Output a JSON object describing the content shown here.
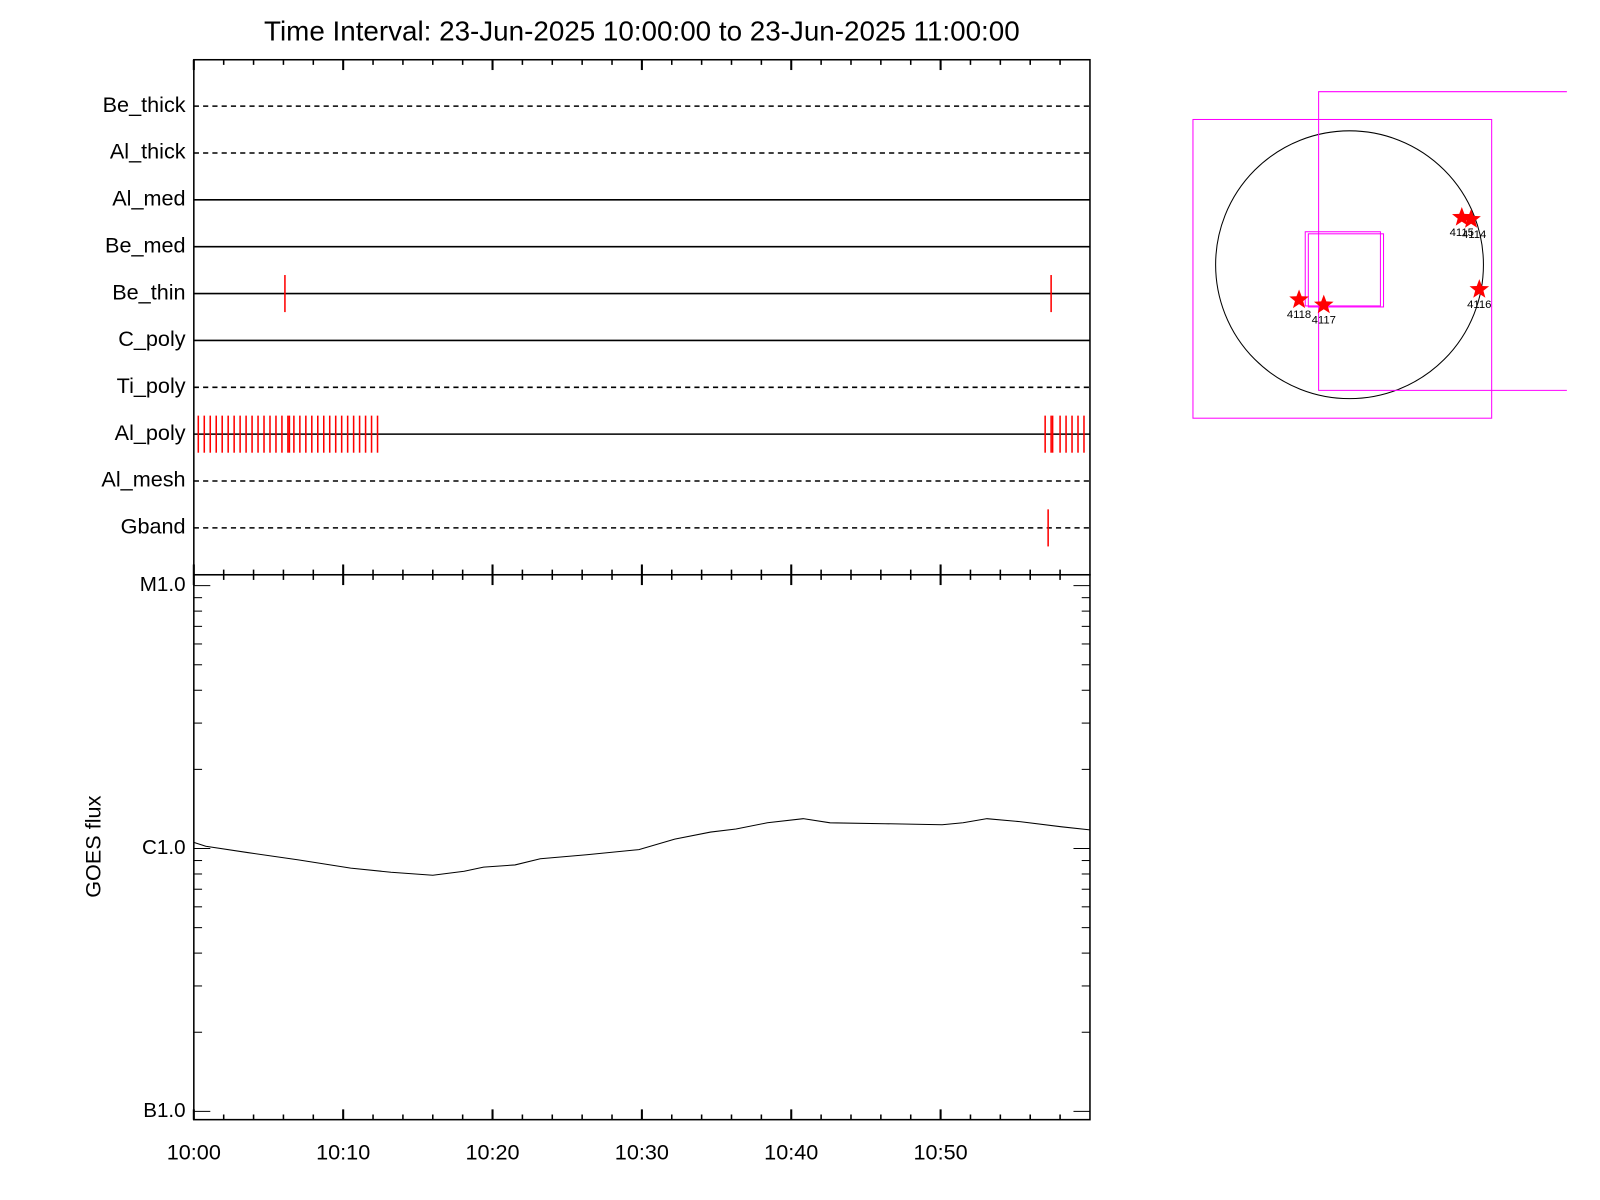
{
  "chart_data": [
    {
      "type": "timeline",
      "title": "Time Interval: 23-Jun-2025 10:00:00 to 23-Jun-2025 11:00:00",
      "categories": [
        "Be_thick",
        "Al_thick",
        "Al_med",
        "Be_med",
        "Be_thin",
        "C_poly",
        "Ti_poly",
        "Al_poly",
        "Al_mesh",
        "Gband"
      ],
      "line_styles": [
        "dashed",
        "dashed",
        "solid",
        "solid",
        "solid",
        "solid",
        "dashed",
        "solid",
        "dashed",
        "dashed"
      ],
      "event_color": "#ff0000",
      "events": [
        [],
        [],
        [],
        [],
        [
          6.1,
          57.4
        ],
        [],
        [],
        [
          0.3,
          0.7,
          1.1,
          1.5,
          1.9,
          2.3,
          2.7,
          3.1,
          3.5,
          3.9,
          4.3,
          4.7,
          5.1,
          5.5,
          5.9,
          6.3,
          6.4,
          6.7,
          7.1,
          7.5,
          7.9,
          8.3,
          8.7,
          9.1,
          9.5,
          9.9,
          10.3,
          10.7,
          11.1,
          11.5,
          11.9,
          12.3,
          57.0,
          57.4,
          57.5,
          58.0,
          58.4,
          58.8,
          59.2,
          59.6
        ],
        [],
        [
          57.2
        ]
      ],
      "xlim": [
        0,
        60
      ],
      "xticks": [
        0,
        10,
        20,
        30,
        40,
        50
      ],
      "xminorticks": [
        2,
        4,
        6,
        8,
        12,
        14,
        16,
        18,
        22,
        24,
        26,
        28,
        32,
        34,
        36,
        38,
        42,
        44,
        46,
        48,
        52,
        54,
        56,
        58
      ]
    },
    {
      "type": "line",
      "ylabel": "GOES flux",
      "log_scale": true,
      "color": "#000000",
      "x": [
        0,
        0.8,
        3.6,
        7.0,
        10.5,
        13.2,
        16.0,
        18.1,
        19.4,
        21.5,
        23.2,
        26.3,
        29.8,
        32.2,
        34.6,
        36.3,
        38.4,
        40.8,
        42.6,
        46.3,
        50.1,
        51.5,
        53.1,
        55.3,
        58.1,
        60
      ],
      "values": [
        1.055e-06,
        1.02e-06,
        9.65e-07,
        9.05e-07,
        8.42e-07,
        8.12e-07,
        7.91e-07,
        8.2e-07,
        8.5e-07,
        8.66e-07,
        9.14e-07,
        9.47e-07,
        9.91e-07,
        1.085e-06,
        1.155e-06,
        1.187e-06,
        1.253e-06,
        1.299e-06,
        1.253e-06,
        1.242e-06,
        1.231e-06,
        1.253e-06,
        1.299e-06,
        1.265e-06,
        1.209e-06,
        1.177e-06
      ],
      "xlim": [
        0,
        60
      ],
      "xticks": [
        {
          "value": 0,
          "label": "10:00"
        },
        {
          "value": 10,
          "label": "10:10"
        },
        {
          "value": 20,
          "label": "10:20"
        },
        {
          "value": 30,
          "label": "10:30"
        },
        {
          "value": 40,
          "label": "10:40"
        },
        {
          "value": 50,
          "label": "10:50"
        }
      ],
      "xminorticks": [
        2,
        4,
        6,
        8,
        12,
        14,
        16,
        18,
        22,
        24,
        26,
        28,
        32,
        34,
        36,
        38,
        42,
        44,
        46,
        48,
        52,
        54,
        56,
        58
      ],
      "ylim": [
        9.3e-08,
        1.1e-05
      ],
      "yticks": [
        {
          "value": 1e-07,
          "label": "B1.0"
        },
        {
          "value": 1e-06,
          "label": "C1.0"
        },
        {
          "value": 1e-05,
          "label": "M1.0"
        }
      ],
      "yminorticks": [
        2e-07,
        3e-07,
        4e-07,
        5e-07,
        6e-07,
        7e-07,
        8e-07,
        9e-07,
        2e-06,
        3e-06,
        4e-06,
        5e-06,
        6e-06,
        7e-06,
        8e-06,
        9e-06
      ]
    }
  ],
  "sun_map": {
    "regions": [
      "4114",
      "4115",
      "4116",
      "4117",
      "4118"
    ]
  }
}
